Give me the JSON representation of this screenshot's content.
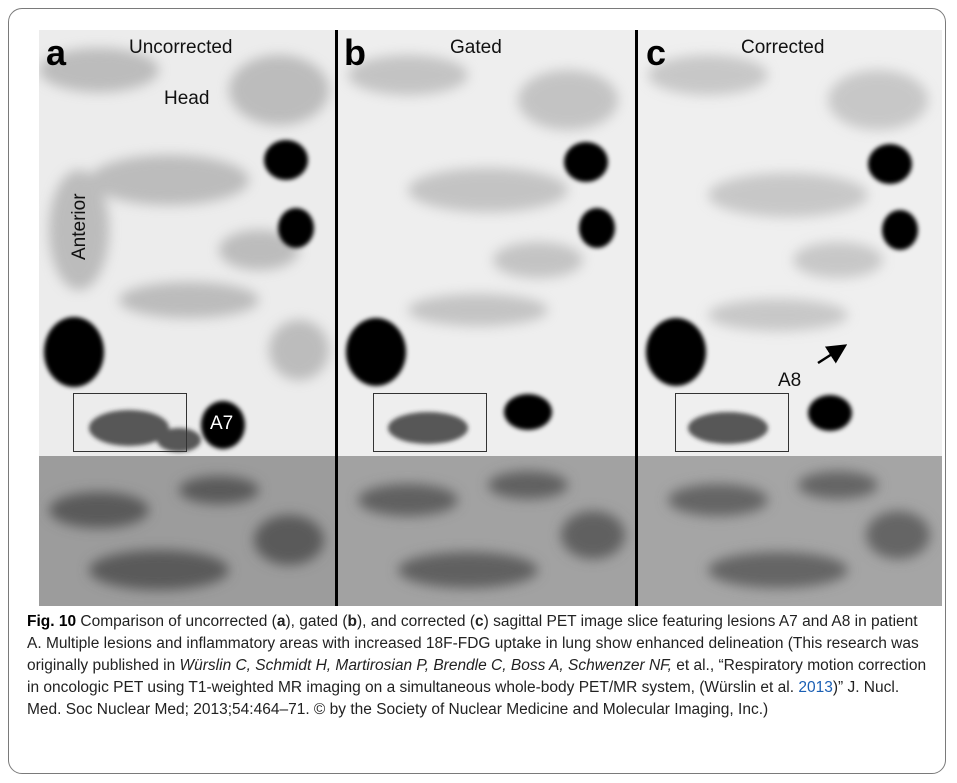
{
  "panels": [
    {
      "letter": "a",
      "title": "Uncorrected"
    },
    {
      "letter": "b",
      "title": "Gated"
    },
    {
      "letter": "c",
      "title": "Corrected"
    }
  ],
  "annotations": {
    "head": "Head",
    "anterior": "Anterior",
    "a7": "A7",
    "a8": "A8"
  },
  "caption": {
    "fig_label": "Fig. 10",
    "p1": " Comparison of uncorrected (",
    "p1_a": "a",
    "p2": "), gated (",
    "p2_b": "b",
    "p3": "), and corrected (",
    "p3_c": "c",
    "p4": ") sagittal PET image slice featuring lesions A7 and A8 in patient A. Multiple lesions and inflammatory areas with increased 18F-FDG uptake in lung show enhanced delineation (This research was originally published in ",
    "authors_italic": "Würslin C, Schmidt H, Martirosian P, Brendle C, Boss A, Schwenzer NF,",
    "p5": " et al., “Respiratory motion correction in oncologic PET using T1-weighted MR imaging on a simultaneous whole-body PET/MR system, (Würslin et al. ",
    "year_link": "2013",
    "p6": ")” J. Nucl. Med. Soc Nuclear Med; 2013;54:464–71. © by the Society of Nuclear Medicine and Molecular Imaging, Inc.)"
  }
}
